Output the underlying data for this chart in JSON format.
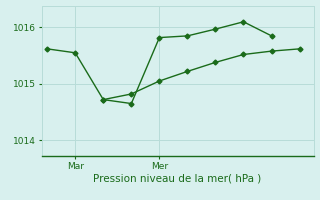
{
  "line1_x": [
    0,
    1,
    2,
    3,
    4,
    5,
    6,
    7,
    8
  ],
  "line1_y": [
    1015.62,
    1015.55,
    1014.72,
    1014.65,
    1015.82,
    1015.85,
    1015.97,
    1016.1,
    1015.85
  ],
  "line2_x": [
    2,
    3,
    4,
    5,
    6,
    7,
    8,
    9
  ],
  "line2_y": [
    1014.72,
    1014.82,
    1015.05,
    1015.22,
    1015.38,
    1015.52,
    1015.58,
    1015.62
  ],
  "line_color": "#1a6b1a",
  "bg_color": "#d8f0ee",
  "grid_color": "#b8dcd8",
  "xlabel": "Pression niveau de la mer( hPa )",
  "yticks": [
    1014,
    1015,
    1016
  ],
  "xtick_positions": [
    1,
    4
  ],
  "xtick_labels": [
    "Mar",
    "Mer"
  ],
  "ylim": [
    1013.72,
    1016.38
  ],
  "xlim": [
    -0.2,
    9.5
  ],
  "marker_size": 2.5,
  "line_width": 1.0,
  "tick_fontsize": 6.5,
  "xlabel_fontsize": 7.5
}
